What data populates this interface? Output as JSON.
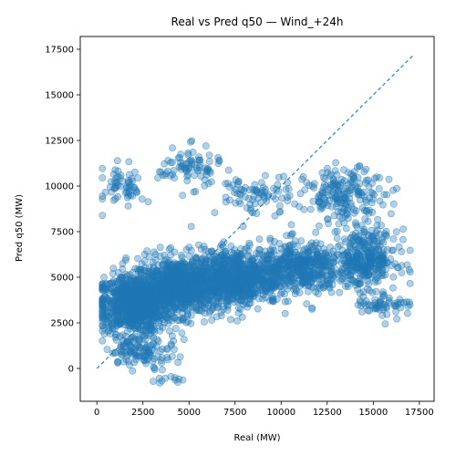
{
  "chart_data": {
    "type": "scatter",
    "title": "Real vs Pred q50 — Wind_+24h",
    "xlabel": "Real (MW)",
    "ylabel": "Pred q50 (MW)",
    "xlim": [
      -900,
      18300
    ],
    "ylim": [
      -1800,
      18200
    ],
    "xticks": [
      0,
      2500,
      5000,
      7500,
      10000,
      12500,
      15000,
      17500
    ],
    "yticks": [
      0,
      2500,
      5000,
      7500,
      10000,
      12500,
      15000,
      17500
    ],
    "xtick_labels": [
      "0",
      "2500",
      "5000",
      "7500",
      "10000",
      "12500",
      "15000",
      "17500"
    ],
    "ytick_labels": [
      "0",
      "2500",
      "5000",
      "7500",
      "10000",
      "12500",
      "15000",
      "17500"
    ],
    "grid": false,
    "marker_color": "#1f77b4",
    "marker_alpha": 0.35,
    "reference_line": {
      "from": [
        0,
        0
      ],
      "to": [
        17200,
        17200
      ],
      "style": "dashed",
      "color": "#1f77b4"
    },
    "point_groups": [
      {
        "cx": 2000,
        "cy": 3500,
        "sx": 1600,
        "sy": 1300,
        "n": 900
      },
      {
        "cx": 4500,
        "cy": 4500,
        "sx": 2000,
        "sy": 1300,
        "n": 900
      },
      {
        "cx": 7500,
        "cy": 5000,
        "sx": 2000,
        "sy": 1300,
        "n": 700
      },
      {
        "cx": 11000,
        "cy": 5500,
        "sx": 1800,
        "sy": 1200,
        "n": 450
      },
      {
        "cx": 14500,
        "cy": 6000,
        "sx": 1500,
        "sy": 1300,
        "n": 350
      },
      {
        "cx": 1500,
        "cy": 10000,
        "sx": 900,
        "sy": 1000,
        "n": 60
      },
      {
        "cx": 5000,
        "cy": 11000,
        "sx": 1400,
        "sy": 900,
        "n": 80
      },
      {
        "cx": 8500,
        "cy": 9500,
        "sx": 1800,
        "sy": 900,
        "n": 80
      },
      {
        "cx": 13500,
        "cy": 9500,
        "sx": 1800,
        "sy": 1200,
        "n": 200
      },
      {
        "cx": 2500,
        "cy": 1000,
        "sx": 1500,
        "sy": 700,
        "n": 120
      },
      {
        "cx": 4000,
        "cy": -500,
        "sx": 900,
        "sy": 300,
        "n": 12
      },
      {
        "cx": 15500,
        "cy": 3500,
        "sx": 1200,
        "sy": 600,
        "n": 60
      }
    ]
  }
}
